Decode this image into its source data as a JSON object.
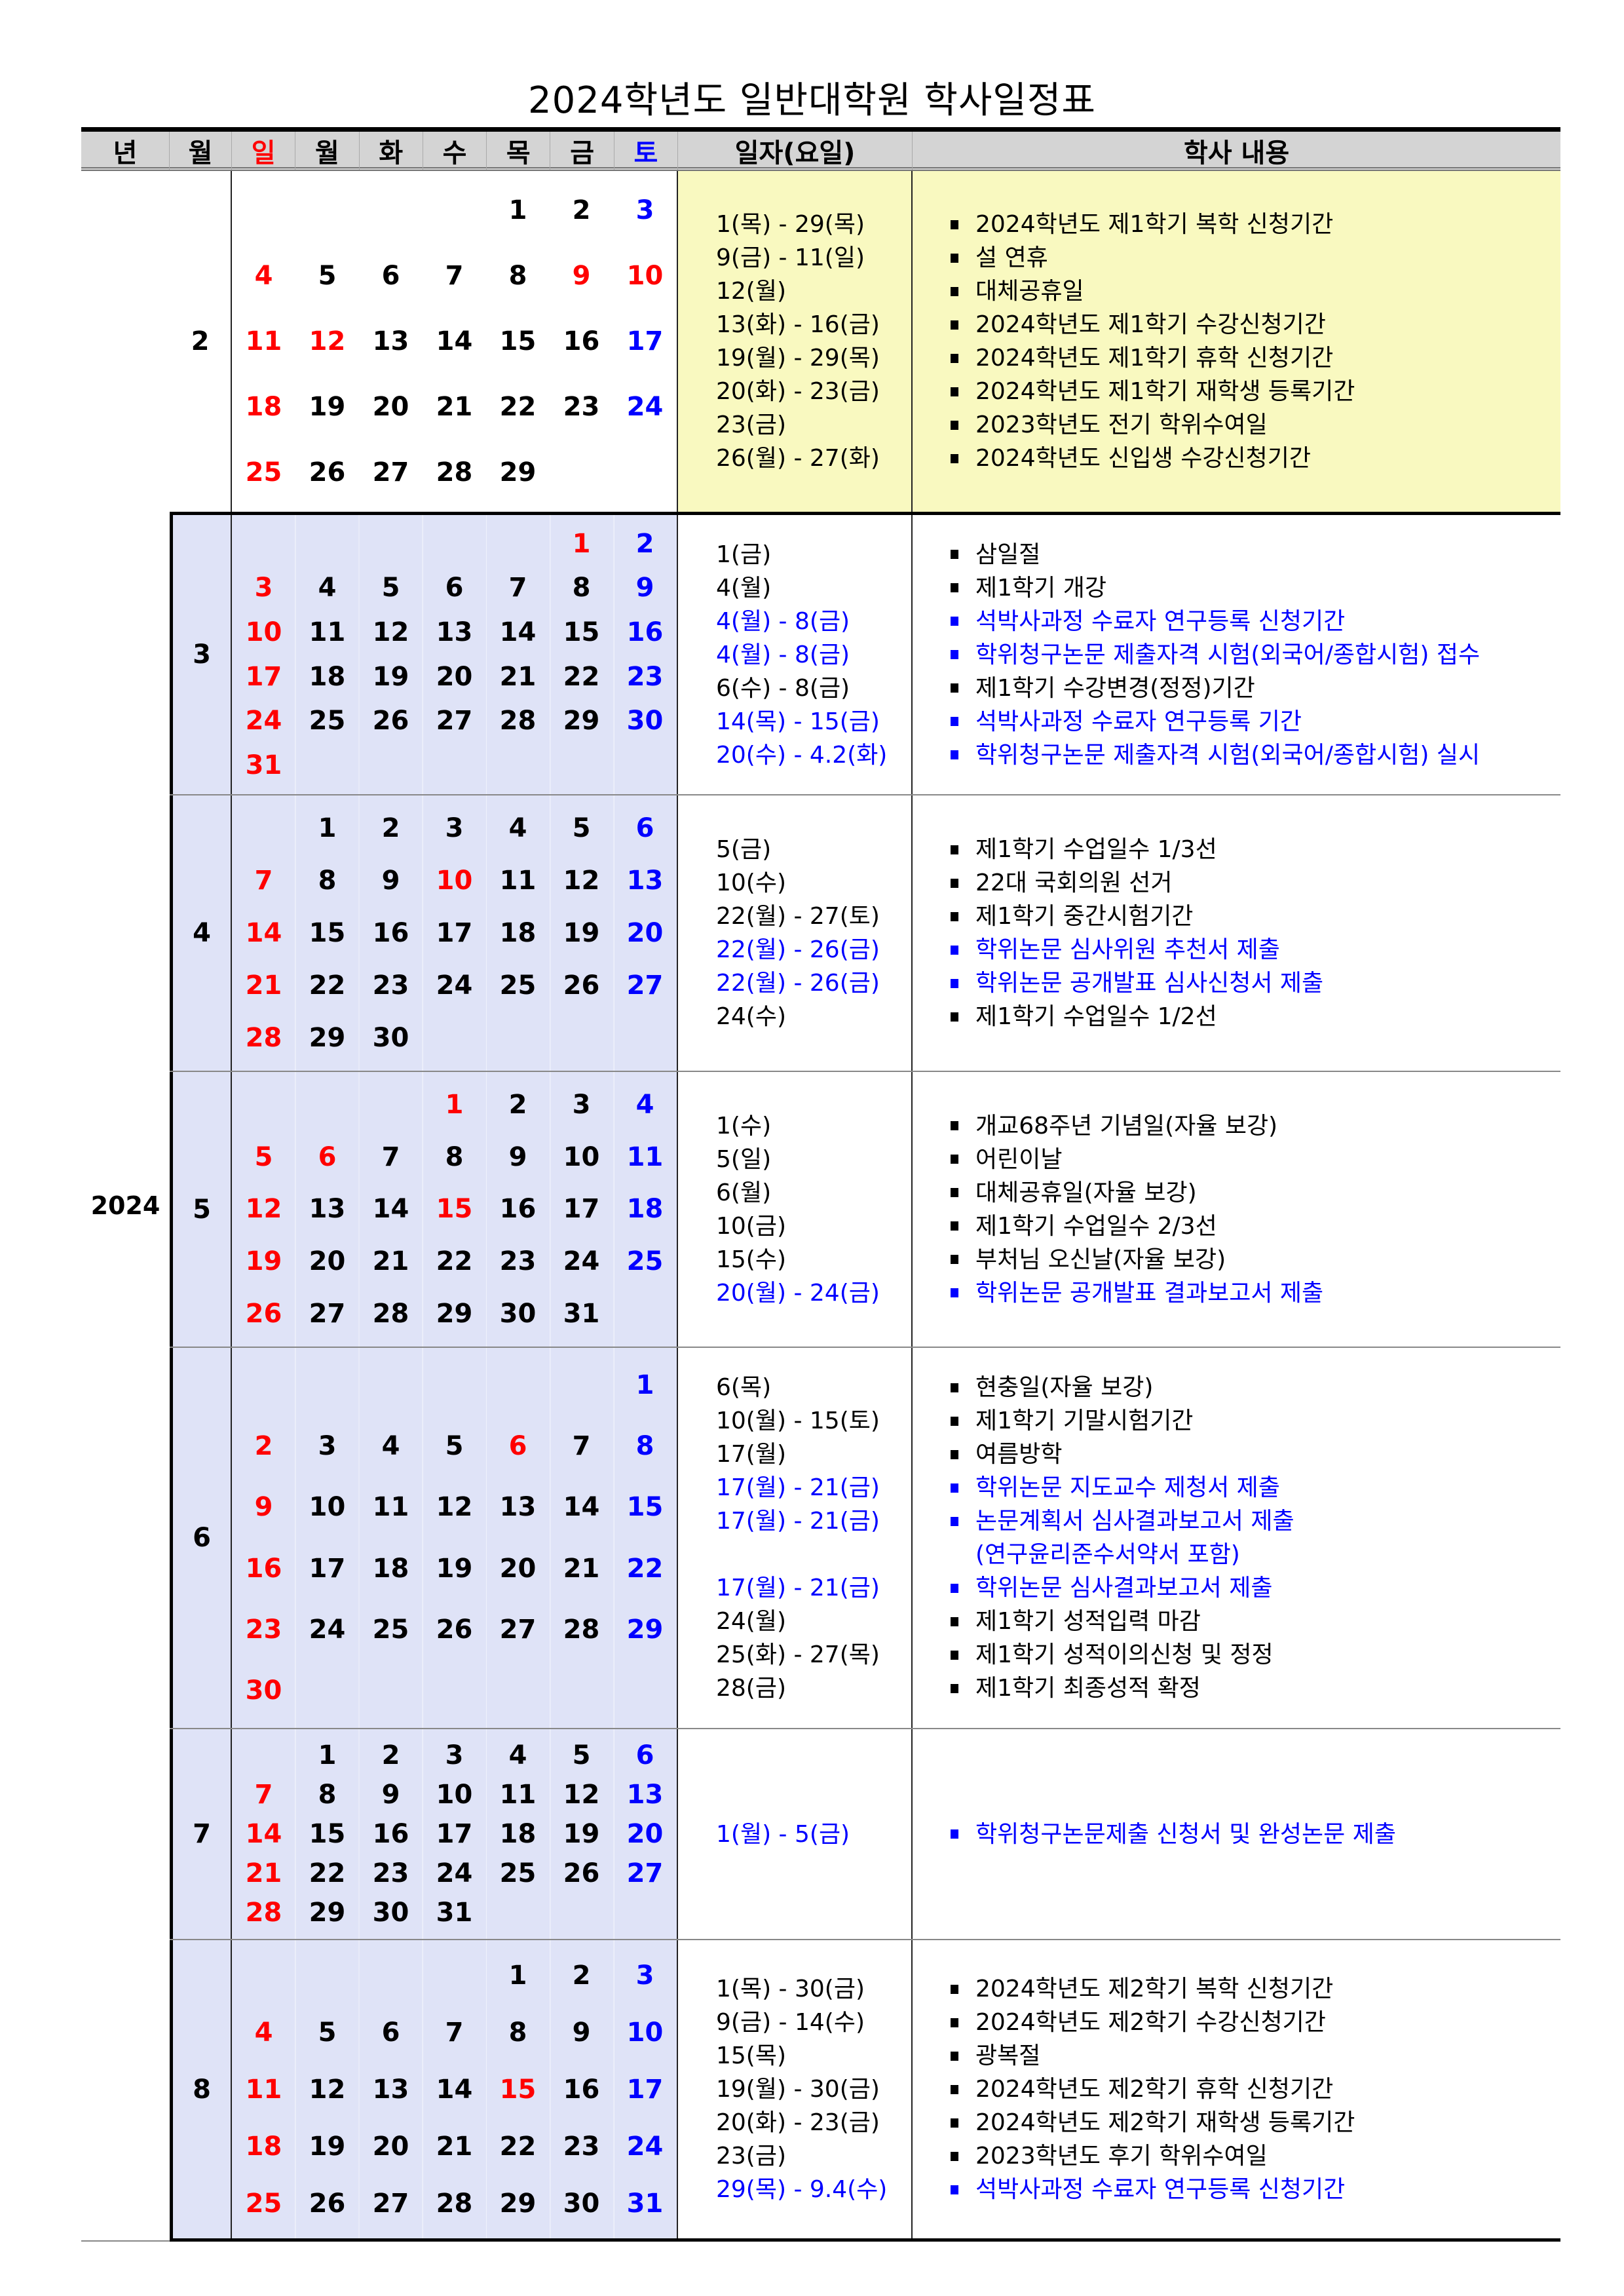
{
  "title": "2024학년도 일반대학원 학사일정표",
  "header": {
    "year": "년",
    "month": "월",
    "days": [
      "일",
      "월",
      "화",
      "수",
      "목",
      "금",
      "토"
    ],
    "date": "일자(요일)",
    "content": "학사 내용"
  },
  "colors": {
    "holiday": "#ff0000",
    "saturday": "#0000ff",
    "highlight_text": "#0000ff",
    "feb_bg": "#f9f9c0",
    "calendar_bg": "#dfe3f7",
    "header_bg": "#d4d4d4"
  },
  "year": "2024",
  "months": [
    {
      "month": "2",
      "holidays": [
        "9",
        "10",
        "12"
      ],
      "weeks": [
        [
          "",
          "",
          "",
          "",
          "1",
          "2",
          "3"
        ],
        [
          "4",
          "5",
          "6",
          "7",
          "8",
          "9",
          "10"
        ],
        [
          "11",
          "12",
          "13",
          "14",
          "15",
          "16",
          "17"
        ],
        [
          "18",
          "19",
          "20",
          "21",
          "22",
          "23",
          "24"
        ],
        [
          "25",
          "26",
          "27",
          "28",
          "29",
          "",
          ""
        ]
      ],
      "events": [
        {
          "date": "1(목) - 29(목)",
          "text": "2024학년도 제1학기 복학 신청기간",
          "color": "black"
        },
        {
          "date": "9(금) - 11(일)",
          "text": "설 연휴",
          "color": "black"
        },
        {
          "date": "12(월)",
          "text": "대체공휴일",
          "color": "black"
        },
        {
          "date": "13(화) - 16(금)",
          "text": "2024학년도 제1학기 수강신청기간",
          "color": "black"
        },
        {
          "date": "19(월) - 29(목)",
          "text": "2024학년도 제1학기 휴학 신청기간",
          "color": "black"
        },
        {
          "date": "20(화) - 23(금)",
          "text": "2024학년도 제1학기 재학생 등록기간",
          "color": "black"
        },
        {
          "date": "23(금)",
          "text": "2023학년도 전기 학위수여일",
          "color": "black"
        },
        {
          "date": "26(월) - 27(화)",
          "text": "2024학년도 신입생 수강신청기간",
          "color": "black"
        }
      ]
    },
    {
      "month": "3",
      "holidays": [
        "1"
      ],
      "weeks": [
        [
          "",
          "",
          "",
          "",
          "",
          "1",
          "2"
        ],
        [
          "3",
          "4",
          "5",
          "6",
          "7",
          "8",
          "9"
        ],
        [
          "10",
          "11",
          "12",
          "13",
          "14",
          "15",
          "16"
        ],
        [
          "17",
          "18",
          "19",
          "20",
          "21",
          "22",
          "23"
        ],
        [
          "24",
          "25",
          "26",
          "27",
          "28",
          "29",
          "30"
        ],
        [
          "31",
          "",
          "",
          "",
          "",
          "",
          ""
        ]
      ],
      "events": [
        {
          "date": "1(금)",
          "text": "삼일절",
          "color": "black"
        },
        {
          "date": "4(월)",
          "text": "제1학기 개강",
          "color": "black"
        },
        {
          "date": "4(월) - 8(금)",
          "text": "석박사과정 수료자 연구등록 신청기간",
          "color": "blue"
        },
        {
          "date": "4(월) - 8(금)",
          "text": "학위청구논문 제출자격 시험(외국어/종합시험) 접수",
          "color": "blue"
        },
        {
          "date": "6(수) - 8(금)",
          "text": "제1학기 수강변경(정정)기간",
          "color": "black"
        },
        {
          "date": "14(목) - 15(금)",
          "text": "석박사과정 수료자 연구등록 기간",
          "color": "blue"
        },
        {
          "date": "20(수) - 4.2(화)",
          "text": "학위청구논문 제출자격 시험(외국어/종합시험) 실시",
          "color": "blue"
        }
      ]
    },
    {
      "month": "4",
      "holidays": [
        "10"
      ],
      "weeks": [
        [
          "",
          "1",
          "2",
          "3",
          "4",
          "5",
          "6"
        ],
        [
          "7",
          "8",
          "9",
          "10",
          "11",
          "12",
          "13"
        ],
        [
          "14",
          "15",
          "16",
          "17",
          "18",
          "19",
          "20"
        ],
        [
          "21",
          "22",
          "23",
          "24",
          "25",
          "26",
          "27"
        ],
        [
          "28",
          "29",
          "30",
          "",
          "",
          "",
          ""
        ]
      ],
      "events": [
        {
          "date": "5(금)",
          "text": "제1학기 수업일수 1/3선",
          "color": "black"
        },
        {
          "date": "10(수)",
          "text": "22대 국회의원 선거",
          "color": "black"
        },
        {
          "date": "22(월) - 27(토)",
          "text": "제1학기 중간시험기간",
          "color": "black"
        },
        {
          "date": "22(월) - 26(금)",
          "text": "학위논문 심사위원 추천서 제출",
          "color": "blue"
        },
        {
          "date": "22(월) - 26(금)",
          "text": "학위논문 공개발표 심사신청서 제출",
          "color": "blue"
        },
        {
          "date": "24(수)",
          "text": "제1학기 수업일수 1/2선",
          "color": "black"
        }
      ]
    },
    {
      "month": "5",
      "holidays": [
        "1",
        "6",
        "15"
      ],
      "weeks": [
        [
          "",
          "",
          "",
          "1",
          "2",
          "3",
          "4"
        ],
        [
          "5",
          "6",
          "7",
          "8",
          "9",
          "10",
          "11"
        ],
        [
          "12",
          "13",
          "14",
          "15",
          "16",
          "17",
          "18"
        ],
        [
          "19",
          "20",
          "21",
          "22",
          "23",
          "24",
          "25"
        ],
        [
          "26",
          "27",
          "28",
          "29",
          "30",
          "31",
          ""
        ]
      ],
      "events": [
        {
          "date": "1(수)",
          "text": "개교68주년 기념일(자율 보강)",
          "color": "black"
        },
        {
          "date": "5(일)",
          "text": "어린이날",
          "color": "black"
        },
        {
          "date": "6(월)",
          "text": "대체공휴일(자율 보강)",
          "color": "black"
        },
        {
          "date": "10(금)",
          "text": "제1학기 수업일수 2/3선",
          "color": "black"
        },
        {
          "date": "15(수)",
          "text": "부처님 오신날(자율 보강)",
          "color": "black"
        },
        {
          "date": "20(월) - 24(금)",
          "text": "학위논문 공개발표 결과보고서 제출",
          "color": "blue"
        }
      ]
    },
    {
      "month": "6",
      "holidays": [
        "6"
      ],
      "weeks": [
        [
          "",
          "",
          "",
          "",
          "",
          "",
          "1"
        ],
        [
          "2",
          "3",
          "4",
          "5",
          "6",
          "7",
          "8"
        ],
        [
          "9",
          "10",
          "11",
          "12",
          "13",
          "14",
          "15"
        ],
        [
          "16",
          "17",
          "18",
          "19",
          "20",
          "21",
          "22"
        ],
        [
          "23",
          "24",
          "25",
          "26",
          "27",
          "28",
          "29"
        ],
        [
          "30",
          "",
          "",
          "",
          "",
          "",
          ""
        ]
      ],
      "events": [
        {
          "date": "6(목)",
          "text": "현충일(자율 보강)",
          "color": "black"
        },
        {
          "date": "10(월) - 15(토)",
          "text": "제1학기 기말시험기간",
          "color": "black"
        },
        {
          "date": "17(월)",
          "text": "여름방학",
          "color": "black"
        },
        {
          "date": "17(월) - 21(금)",
          "text": "학위논문 지도교수 제청서 제출",
          "color": "blue"
        },
        {
          "date": "17(월) - 21(금)",
          "text": "논문계획서 심사결과보고서 제출",
          "color": "blue"
        },
        {
          "date": "",
          "text": "(연구윤리준수서약서 포함)",
          "color": "blue",
          "bullet": false
        },
        {
          "date": "17(월) - 21(금)",
          "text": "학위논문 심사결과보고서 제출",
          "color": "blue"
        },
        {
          "date": "24(월)",
          "text": "제1학기 성적입력 마감",
          "color": "black"
        },
        {
          "date": "25(화) - 27(목)",
          "text": "제1학기 성적이의신청 및 정정",
          "color": "black"
        },
        {
          "date": "28(금)",
          "text": "제1학기 최종성적 확정",
          "color": "black"
        }
      ]
    },
    {
      "month": "7",
      "holidays": [],
      "weeks": [
        [
          "",
          "1",
          "2",
          "3",
          "4",
          "5",
          "6"
        ],
        [
          "7",
          "8",
          "9",
          "10",
          "11",
          "12",
          "13"
        ],
        [
          "14",
          "15",
          "16",
          "17",
          "18",
          "19",
          "20"
        ],
        [
          "21",
          "22",
          "23",
          "24",
          "25",
          "26",
          "27"
        ],
        [
          "28",
          "29",
          "30",
          "31",
          "",
          "",
          ""
        ]
      ],
      "events": [
        {
          "date": "1(월) - 5(금)",
          "text": "학위청구논문제출 신청서 및 완성논문 제출",
          "color": "blue"
        }
      ]
    },
    {
      "month": "8",
      "holidays": [
        "15"
      ],
      "weeks": [
        [
          "",
          "",
          "",
          "",
          "1",
          "2",
          "3"
        ],
        [
          "4",
          "5",
          "6",
          "7",
          "8",
          "9",
          "10"
        ],
        [
          "11",
          "12",
          "13",
          "14",
          "15",
          "16",
          "17"
        ],
        [
          "18",
          "19",
          "20",
          "21",
          "22",
          "23",
          "24"
        ],
        [
          "25",
          "26",
          "27",
          "28",
          "29",
          "30",
          "31"
        ]
      ],
      "events": [
        {
          "date": "1(목) - 30(금)",
          "text": "2024학년도 제2학기 복학 신청기간",
          "color": "black"
        },
        {
          "date": "9(금) - 14(수)",
          "text": "2024학년도 제2학기 수강신청기간",
          "color": "black"
        },
        {
          "date": "15(목)",
          "text": "광복절",
          "color": "black"
        },
        {
          "date": "19(월) - 30(금)",
          "text": "2024학년도 제2학기 휴학 신청기간",
          "color": "black"
        },
        {
          "date": "20(화) - 23(금)",
          "text": "2024학년도 제2학기 재학생 등록기간",
          "color": "black"
        },
        {
          "date": "23(금)",
          "text": "2023학년도 후기 학위수여일",
          "color": "black"
        },
        {
          "date": "29(목) - 9.4(수)",
          "text": "석박사과정 수료자 연구등록 신청기간",
          "color": "blue"
        }
      ]
    }
  ]
}
